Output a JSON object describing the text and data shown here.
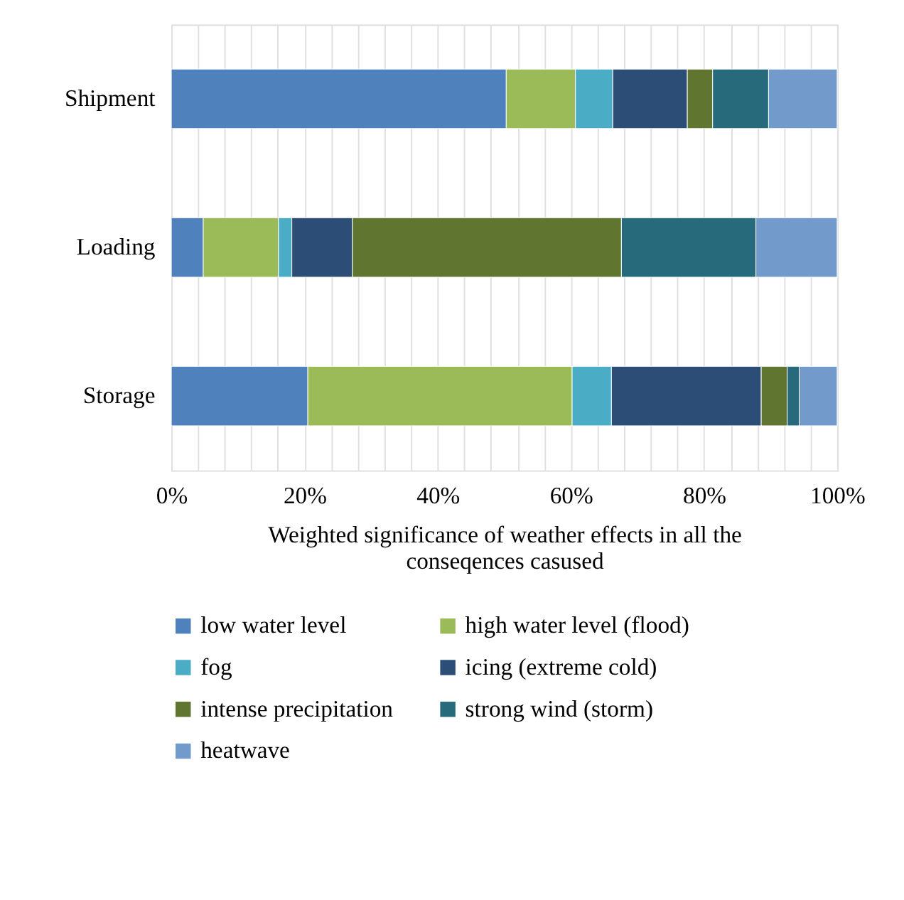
{
  "chart_data": {
    "type": "bar",
    "orientation": "horizontal",
    "stacked": true,
    "xlabel": "Weighted significance of weather effects in all the conseqences casused",
    "categories": [
      "Shipment",
      "Loading",
      "Storage"
    ],
    "series": [
      {
        "name": "low water level",
        "color": "#4f81bd",
        "values": [
          50.3,
          4.8,
          20.5
        ]
      },
      {
        "name": "high water level (flood)",
        "color": "#9bbb59",
        "values": [
          10.4,
          11.3,
          39.7
        ]
      },
      {
        "name": "fog",
        "color": "#4bacc6",
        "values": [
          5.6,
          2.0,
          5.9
        ]
      },
      {
        "name": "icing (extreme cold)",
        "color": "#2c4d75",
        "values": [
          11.2,
          9.1,
          22.5
        ]
      },
      {
        "name": "intense precipitation",
        "color": "#5f7530",
        "values": [
          3.8,
          40.4,
          3.9
        ]
      },
      {
        "name": "strong wind (storm)",
        "color": "#276a7c",
        "values": [
          8.4,
          20.2,
          1.8
        ]
      },
      {
        "name": "heatwave",
        "color": "#729aca",
        "values": [
          10.3,
          12.2,
          5.7
        ]
      }
    ],
    "xlim": [
      0,
      100
    ],
    "xticks": [
      {
        "value": 0,
        "label": "0%"
      },
      {
        "value": 4,
        "label": null
      },
      {
        "value": 8,
        "label": null
      },
      {
        "value": 12,
        "label": null
      },
      {
        "value": 16,
        "label": null
      },
      {
        "value": 20,
        "label": "20%"
      },
      {
        "value": 24,
        "label": null
      },
      {
        "value": 28,
        "label": null
      },
      {
        "value": 32,
        "label": null
      },
      {
        "value": 36,
        "label": null
      },
      {
        "value": 40,
        "label": "40%"
      },
      {
        "value": 44,
        "label": null
      },
      {
        "value": 48,
        "label": null
      },
      {
        "value": 52,
        "label": null
      },
      {
        "value": 56,
        "label": null
      },
      {
        "value": 60,
        "label": "60%"
      },
      {
        "value": 64,
        "label": null
      },
      {
        "value": 68,
        "label": null
      },
      {
        "value": 72,
        "label": null
      },
      {
        "value": 76,
        "label": null
      },
      {
        "value": 80,
        "label": "80%"
      },
      {
        "value": 84,
        "label": null
      },
      {
        "value": 88,
        "label": null
      },
      {
        "value": 92,
        "label": null
      },
      {
        "value": 96,
        "label": null
      },
      {
        "value": 100,
        "label": "100%"
      }
    ],
    "grid": "x",
    "legend": "bottom"
  }
}
